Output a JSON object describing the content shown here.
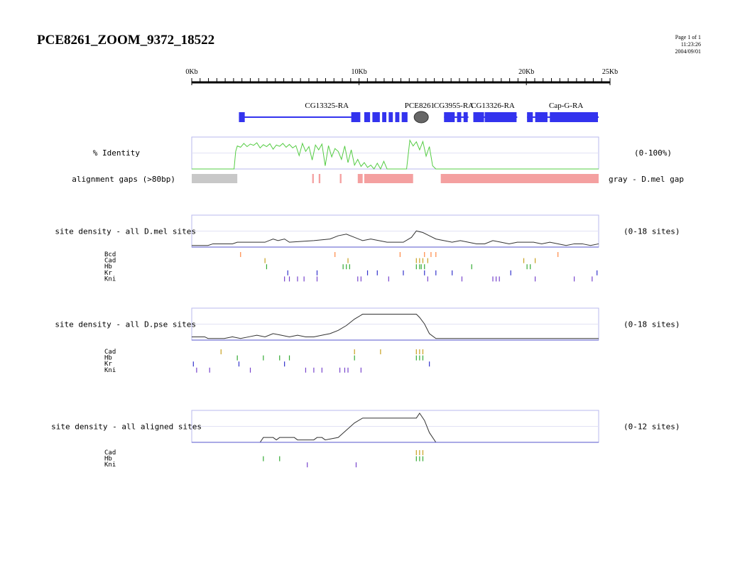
{
  "page": {
    "title": "PCE8261_ZOOM_9372_18522",
    "page_label": "Page 1 of 1",
    "time": "11:23:26",
    "date": "2004/09/01"
  },
  "chart_data": {
    "type": "genome-browser",
    "ruler": {
      "range_kb": [
        0,
        25
      ],
      "ticks": [
        {
          "kb": 0,
          "label": "0Kb"
        },
        {
          "kb": 10,
          "label": "10Kb"
        },
        {
          "kb": 20,
          "label": "20Kb"
        },
        {
          "kb": 25,
          "label": "25Kb"
        }
      ]
    },
    "genes": [
      {
        "name": "CG13325-RA",
        "label_kb": 8.3,
        "intron": [
          2.9,
          10.0
        ],
        "exons": [
          [
            2.9,
            3.3
          ],
          [
            9.8,
            10.4
          ],
          [
            10.6,
            11.0
          ],
          [
            11.1,
            11.6
          ],
          [
            11.7,
            12.0
          ],
          [
            12.1,
            12.4
          ],
          [
            12.5,
            12.8
          ],
          [
            12.9,
            13.3
          ]
        ]
      },
      {
        "name": "PCE8261",
        "label_kb": 14.0,
        "oval_kb": 14.1,
        "exons": []
      },
      {
        "name": "CG3955-RA",
        "label_kb": 16.1,
        "intron": [
          15.5,
          17.0
        ],
        "exons": [
          [
            15.5,
            16.2
          ],
          [
            16.3,
            16.6
          ],
          [
            16.7,
            17.0
          ]
        ]
      },
      {
        "name": "CG13326-RA",
        "label_kb": 18.5,
        "intron": [
          17.3,
          20.0
        ],
        "exons": [
          [
            17.3,
            18.0
          ],
          [
            18.0,
            20.0
          ]
        ]
      },
      {
        "name": "Cap-G-RA",
        "label_kb": 23.0,
        "intron": [
          20.6,
          25.0
        ],
        "exons": [
          [
            20.6,
            21.0
          ],
          [
            21.1,
            21.9
          ],
          [
            22.0,
            25.0
          ]
        ]
      }
    ],
    "identity": {
      "label": "% Identity",
      "range_label": "(0-100%)",
      "color": "#55cc44",
      "x_kb": [
        0,
        2.6,
        2.7,
        2.8,
        3.0,
        3.2,
        3.4,
        3.6,
        3.8,
        4.0,
        4.2,
        4.4,
        4.6,
        4.8,
        5.0,
        5.2,
        5.4,
        5.6,
        5.8,
        6.0,
        6.2,
        6.4,
        6.6,
        6.8,
        7.0,
        7.2,
        7.4,
        7.6,
        7.8,
        8.0,
        8.2,
        8.4,
        8.6,
        8.8,
        9.0,
        9.2,
        9.4,
        9.6,
        9.8,
        10.0,
        10.2,
        10.4,
        10.6,
        10.8,
        11.0,
        11.2,
        11.4,
        11.6,
        11.8,
        12.0,
        12.2,
        12.4,
        12.6,
        12.8,
        13.0,
        13.2,
        13.4,
        13.6,
        13.8,
        14.0,
        14.2,
        14.4,
        14.6,
        14.8,
        15.0,
        25
      ],
      "y_pct": [
        0,
        0,
        55,
        72,
        68,
        80,
        70,
        78,
        74,
        82,
        66,
        76,
        70,
        79,
        62,
        75,
        71,
        80,
        68,
        77,
        66,
        73,
        42,
        80,
        55,
        70,
        28,
        75,
        60,
        78,
        10,
        73,
        38,
        64,
        55,
        30,
        72,
        20,
        60,
        12,
        30,
        8,
        20,
        5,
        12,
        0,
        18,
        0,
        24,
        0,
        0,
        0,
        0,
        0,
        0,
        0,
        90,
        72,
        85,
        60,
        86,
        40,
        70,
        10,
        0,
        0
      ]
    },
    "gaps": {
      "label": "alignment gaps (>80bp)",
      "legend_text": "gray - D.mel gap",
      "gray_color": "#c8c8c8",
      "pink_color": "#f4a0a0",
      "gray_segments": [
        [
          0.0,
          2.8
        ]
      ],
      "pink_segments": [
        [
          7.4,
          7.5
        ],
        [
          7.8,
          7.9
        ],
        [
          9.1,
          9.2
        ],
        [
          10.2,
          10.5
        ],
        [
          10.6,
          13.6
        ],
        [
          15.3,
          25.0
        ]
      ]
    },
    "tracks": [
      {
        "name": "dmel",
        "label": "site density - all D.mel sites",
        "range_label": "(0-18 sites)",
        "y_max": 18,
        "density_x_kb": [
          0,
          1.0,
          1.3,
          2.5,
          2.8,
          4.5,
          5.0,
          5.3,
          5.7,
          6.0,
          7.5,
          8.5,
          9.0,
          9.5,
          10.0,
          10.5,
          11.0,
          11.5,
          12.0,
          13.0,
          13.5,
          13.8,
          14.2,
          14.6,
          15.0,
          15.5,
          16.0,
          16.5,
          17.5,
          18.0,
          18.5,
          19.0,
          19.5,
          20.0,
          21.0,
          21.5,
          22.0,
          23.0,
          23.5,
          24.0,
          24.5,
          25.0
        ],
        "density_y": [
          1,
          1,
          2,
          2,
          3,
          3,
          5,
          4,
          5,
          3,
          4,
          5,
          7,
          8,
          6,
          4,
          5,
          4,
          3,
          3,
          6,
          10,
          9,
          7,
          5,
          4,
          3,
          4,
          2,
          2,
          4,
          3,
          2,
          3,
          3,
          2,
          3,
          1,
          2,
          2,
          1,
          2
        ],
        "factors": [
          {
            "name": "Bcd",
            "color": "#ff8844",
            "sites_kb": [
              3.0,
              8.8,
              12.8,
              14.3,
              14.7,
              15.0,
              22.5
            ]
          },
          {
            "name": "Cad",
            "color": "#c8a020",
            "sites_kb": [
              4.5,
              9.6,
              13.8,
              14.0,
              14.2,
              14.5,
              20.4,
              21.1
            ]
          },
          {
            "name": "Hb",
            "color": "#33aa33",
            "sites_kb": [
              4.6,
              9.3,
              9.5,
              9.7,
              13.8,
              14.0,
              14.1,
              14.3,
              17.2,
              20.6,
              20.8
            ]
          },
          {
            "name": "Kr",
            "color": "#3333cc",
            "sites_kb": [
              5.9,
              7.7,
              10.8,
              11.4,
              13.0,
              14.3,
              15.0,
              16.0,
              19.6,
              24.9
            ]
          },
          {
            "name": "Kni",
            "color": "#7744cc",
            "sites_kb": [
              5.7,
              6.0,
              6.5,
              6.9,
              7.7,
              10.2,
              10.4,
              12.1,
              14.5,
              16.6,
              18.5,
              18.7,
              18.9,
              21.1,
              23.5,
              24.6
            ]
          }
        ]
      },
      {
        "name": "dpse",
        "label": "site density - all D.pse sites",
        "range_label": "(0-18 sites)",
        "y_max": 18,
        "density_x_kb": [
          0,
          0.8,
          1.0,
          2.0,
          2.5,
          3.0,
          3.5,
          4.0,
          4.5,
          5.0,
          5.5,
          6.0,
          6.5,
          7.0,
          7.5,
          8.0,
          8.5,
          9.0,
          9.5,
          10.0,
          10.5,
          11.0,
          11.5,
          12.0,
          13.0,
          13.8,
          14.0,
          14.3,
          14.6,
          15.0,
          25.0
        ],
        "density_y": [
          2,
          2,
          1,
          1,
          2,
          1,
          2,
          3,
          2,
          4,
          3,
          2,
          3,
          2,
          2,
          3,
          4,
          6,
          9,
          13,
          16,
          16,
          16,
          16,
          16,
          16,
          14,
          10,
          4,
          1,
          1
        ],
        "factors": [
          {
            "name": "Cad",
            "color": "#c8a020",
            "sites_kb": [
              1.8,
              10.0,
              11.6,
              13.8,
              14.0,
              14.2
            ]
          },
          {
            "name": "Hb",
            "color": "#33aa33",
            "sites_kb": [
              2.8,
              4.4,
              5.4,
              6.0,
              10.0,
              13.8,
              14.0,
              14.2
            ]
          },
          {
            "name": "Kr",
            "color": "#3333cc",
            "sites_kb": [
              0.1,
              2.9,
              5.7,
              14.6
            ]
          },
          {
            "name": "Kni",
            "color": "#7744cc",
            "sites_kb": [
              0.3,
              1.1,
              3.6,
              7.0,
              7.5,
              8.0,
              9.1,
              9.4,
              9.6,
              10.4
            ]
          }
        ]
      },
      {
        "name": "aligned",
        "label": "site density - all aligned sites",
        "range_label": "(0-12 sites)",
        "y_max": 12,
        "density_x_kb": [
          0,
          4.2,
          4.4,
          5.0,
          5.2,
          5.4,
          5.6,
          6.3,
          6.5,
          7.5,
          7.7,
          8.0,
          8.2,
          9.0,
          9.5,
          10.0,
          10.5,
          11.0,
          12.0,
          13.0,
          13.8,
          14.0,
          14.3,
          14.6,
          15.0,
          25.0
        ],
        "density_y": [
          0,
          0,
          2,
          2,
          1,
          2,
          2,
          2,
          1,
          1,
          2,
          2,
          1,
          2,
          5,
          8,
          10,
          10,
          10,
          10,
          10,
          12,
          9,
          4,
          0,
          0
        ],
        "factors": [
          {
            "name": "Cad",
            "color": "#c8a020",
            "sites_kb": [
              13.8,
              14.0,
              14.2
            ]
          },
          {
            "name": "Hb",
            "color": "#33aa33",
            "sites_kb": [
              4.4,
              5.4,
              13.8,
              14.0,
              14.2
            ]
          },
          {
            "name": "Kni",
            "color": "#7744cc",
            "sites_kb": [
              7.1,
              10.1
            ]
          }
        ]
      }
    ]
  }
}
